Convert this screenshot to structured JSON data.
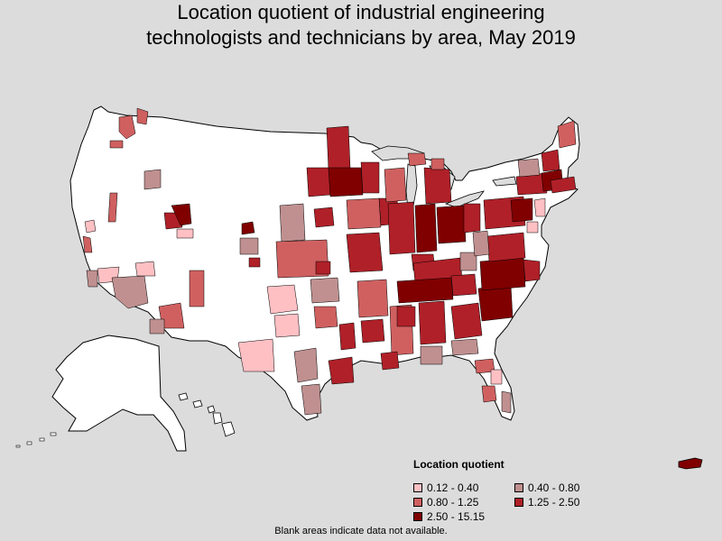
{
  "title": {
    "line1": "Location quotient of industrial engineering",
    "line2": "technologists and technicians by area, May 2019"
  },
  "legend": {
    "title": "Location quotient",
    "items": [
      {
        "label": "0.12 - 0.40",
        "color": "#ffc0c4"
      },
      {
        "label": "0.40 - 0.80",
        "color": "#c09090"
      },
      {
        "label": "0.80 - 1.25",
        "color": "#d06060"
      },
      {
        "label": "1.25 - 2.50",
        "color": "#b02028"
      },
      {
        "label": "2.50 - 15.15",
        "color": "#800000"
      }
    ]
  },
  "footnote": "Blank areas indicate data not available.",
  "colors": {
    "background": "#dcdcdc",
    "no_data": "#ffffff",
    "border": "#000000"
  }
}
